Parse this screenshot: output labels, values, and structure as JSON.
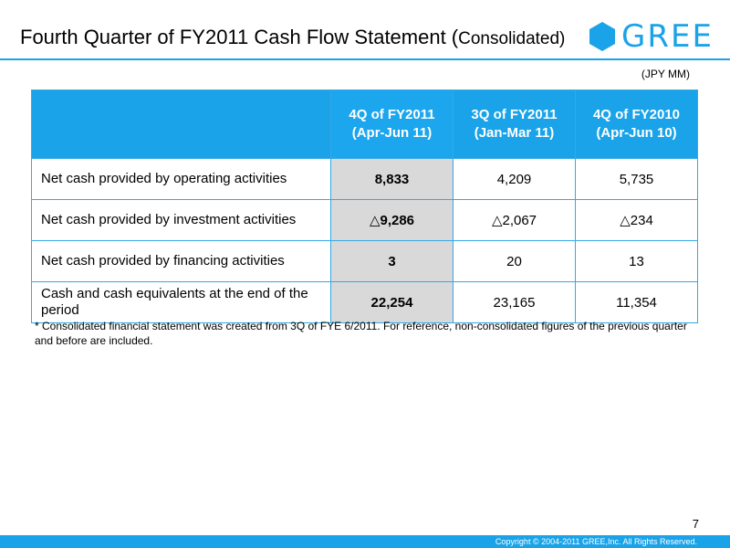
{
  "slide": {
    "title_main": "Fourth Quarter of FY2011  Cash Flow Statement (",
    "title_paren": "Consolidated)",
    "unit": "(JPY MM)",
    "note": "* Consolidated financial statement was created from 3Q of FYE 6/2011. For reference, non-consolidated figures of the previous quarter and before are included.",
    "page_number": "7",
    "copyright": "Copyright © 2004-2011 GREE,Inc. All Rights Reserved."
  },
  "brand": {
    "name": "GREE",
    "color": "#1aa3e8",
    "icon": "gree-hexagon-icon"
  },
  "table": {
    "columns": [
      {
        "line1": "4Q of FY2011",
        "line2": "(Apr-Jun 11)"
      },
      {
        "line1": "3Q of FY2011",
        "line2": "(Jan-Mar 11)"
      },
      {
        "line1": "4Q of FY2010",
        "line2": "(Apr-Jun 10)"
      }
    ],
    "rows": [
      {
        "label": "Net cash provided by operating activities",
        "values": [
          "8,833",
          "4,209",
          "5,735"
        ]
      },
      {
        "label": "Net cash provided by investment activities",
        "values": [
          "△9,286",
          "△2,067",
          "△234"
        ]
      },
      {
        "label": "Net cash provided by financing activities",
        "values": [
          "3",
          "20",
          "13"
        ]
      },
      {
        "label": "Cash and cash equivalents at the end of the period",
        "values": [
          "22,254",
          "23,165",
          "11,354"
        ]
      }
    ]
  }
}
